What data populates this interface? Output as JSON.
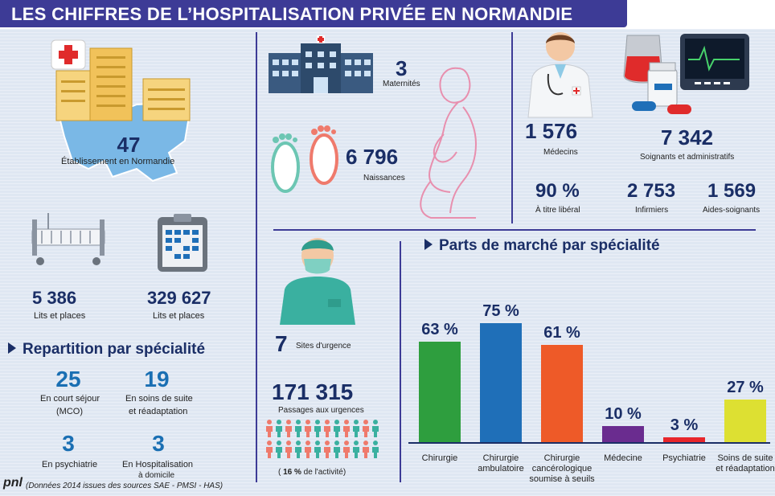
{
  "title": "LES CHIFFRES DE L’HOSPITALISATION PRIVÉE EN NORMANDIE",
  "establishments": {
    "value": "47",
    "label": "Établissement en Normandie"
  },
  "beds": {
    "value": "5 386",
    "label": "Lits et places"
  },
  "days": {
    "value": "329 627",
    "label": "Lits et places"
  },
  "maternity": {
    "value": "3",
    "label": "Maternités"
  },
  "births": {
    "value": "6 796",
    "label": "Naissances"
  },
  "doctors": {
    "value": "1 576",
    "label": "Médecins"
  },
  "staff": {
    "value": "7 342",
    "label": "Soignants et administratifs"
  },
  "liberal": {
    "value": "90 %",
    "label": "À titre libéral"
  },
  "nurses": {
    "value": "2 753",
    "label": "Infirmiers"
  },
  "aides": {
    "value": "1 569",
    "label": "Aides-soignants"
  },
  "repartition": {
    "title": "Repartition par spécialité",
    "items": [
      {
        "value": "25",
        "label1": "En court séjour",
        "label2": "(MCO)"
      },
      {
        "value": "19",
        "label1": "En soins de suite",
        "label2": "et réadaptation"
      },
      {
        "value": "3",
        "label1": "En psychiatrie",
        "label2": ""
      },
      {
        "value": "3",
        "label1": "En Hospitalisation",
        "label2": "à domicile"
      }
    ]
  },
  "urgences": {
    "sites_value": "7",
    "sites_label": "Sites d'urgence",
    "passages_value": "171 315",
    "passages_label": "Passages aux urgences",
    "activity_open": "( ",
    "activity_pct": "16 %",
    "activity_rest": " de l'activité)"
  },
  "footer": {
    "logo": "pnl",
    "note": "(Données 2014 issues des sources SAE - PMSI - HAS)"
  },
  "colors": {
    "header": "#3d3b96",
    "chirurgie": "#2e9e3e",
    "ambulatoire": "#1f6fb8",
    "cancero": "#ee5a28",
    "medecine": "#6a2c8f",
    "psychiatrie": "#e8262b",
    "ssr": "#dde032"
  },
  "chart_data": {
    "type": "bar",
    "title": "Parts de marché par spécialité",
    "categories": [
      "Chirurgie",
      "Chirurgie ambulatoire",
      "Chirurgie cancérologique soumise à seuils",
      "Médecine",
      "Psychiatrie",
      "Soins de suite et réadaptation"
    ],
    "category_lines": [
      [
        "Chirurgie"
      ],
      [
        "Chirurgie",
        "ambulatoire"
      ],
      [
        "Chirurgie",
        "cancérologique",
        "soumise à seuils"
      ],
      [
        "Médecine"
      ],
      [
        "Psychiatrie"
      ],
      [
        "Soins de suite",
        "et réadaptation"
      ]
    ],
    "values": [
      63,
      75,
      61,
      10,
      3,
      27
    ],
    "value_labels": [
      "63 %",
      "75 %",
      "61 %",
      "10 %",
      "3 %",
      "27 %"
    ],
    "unit": "%",
    "ylim": [
      0,
      100
    ],
    "xlabel": "",
    "ylabel": ""
  }
}
